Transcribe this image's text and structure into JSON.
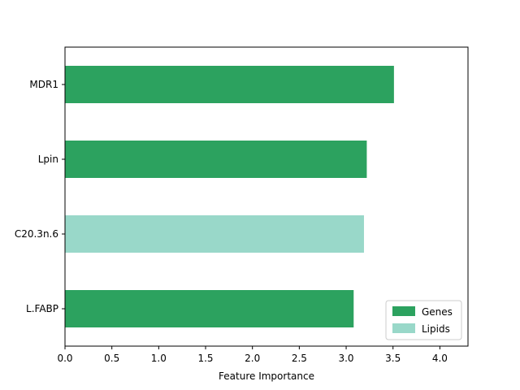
{
  "chart_data": {
    "type": "bar",
    "orientation": "horizontal",
    "title": "",
    "xlabel": "Feature Importance",
    "ylabel": "",
    "xlim": [
      0,
      4.3
    ],
    "xticks": [
      0.0,
      0.5,
      1.0,
      1.5,
      2.0,
      2.5,
      3.0,
      3.5,
      4.0
    ],
    "xtick_labels": [
      "0.0",
      "0.5",
      "1.0",
      "1.5",
      "2.0",
      "2.5",
      "3.0",
      "3.5",
      "4.0"
    ],
    "categories": [
      "MDR1",
      "Lpin",
      "C20.3n.6",
      "L.FABP"
    ],
    "values": [
      3.51,
      3.22,
      3.19,
      3.08
    ],
    "groups": [
      "Genes",
      "Genes",
      "Lipids",
      "Genes"
    ],
    "colors": {
      "Genes": "#2ca25f",
      "Lipids": "#99d8c9"
    },
    "legend": {
      "placement": "lower-right",
      "entries": [
        {
          "label": "Genes",
          "group": "Genes"
        },
        {
          "label": "Lipids",
          "group": "Lipids"
        }
      ]
    },
    "grid": false
  }
}
